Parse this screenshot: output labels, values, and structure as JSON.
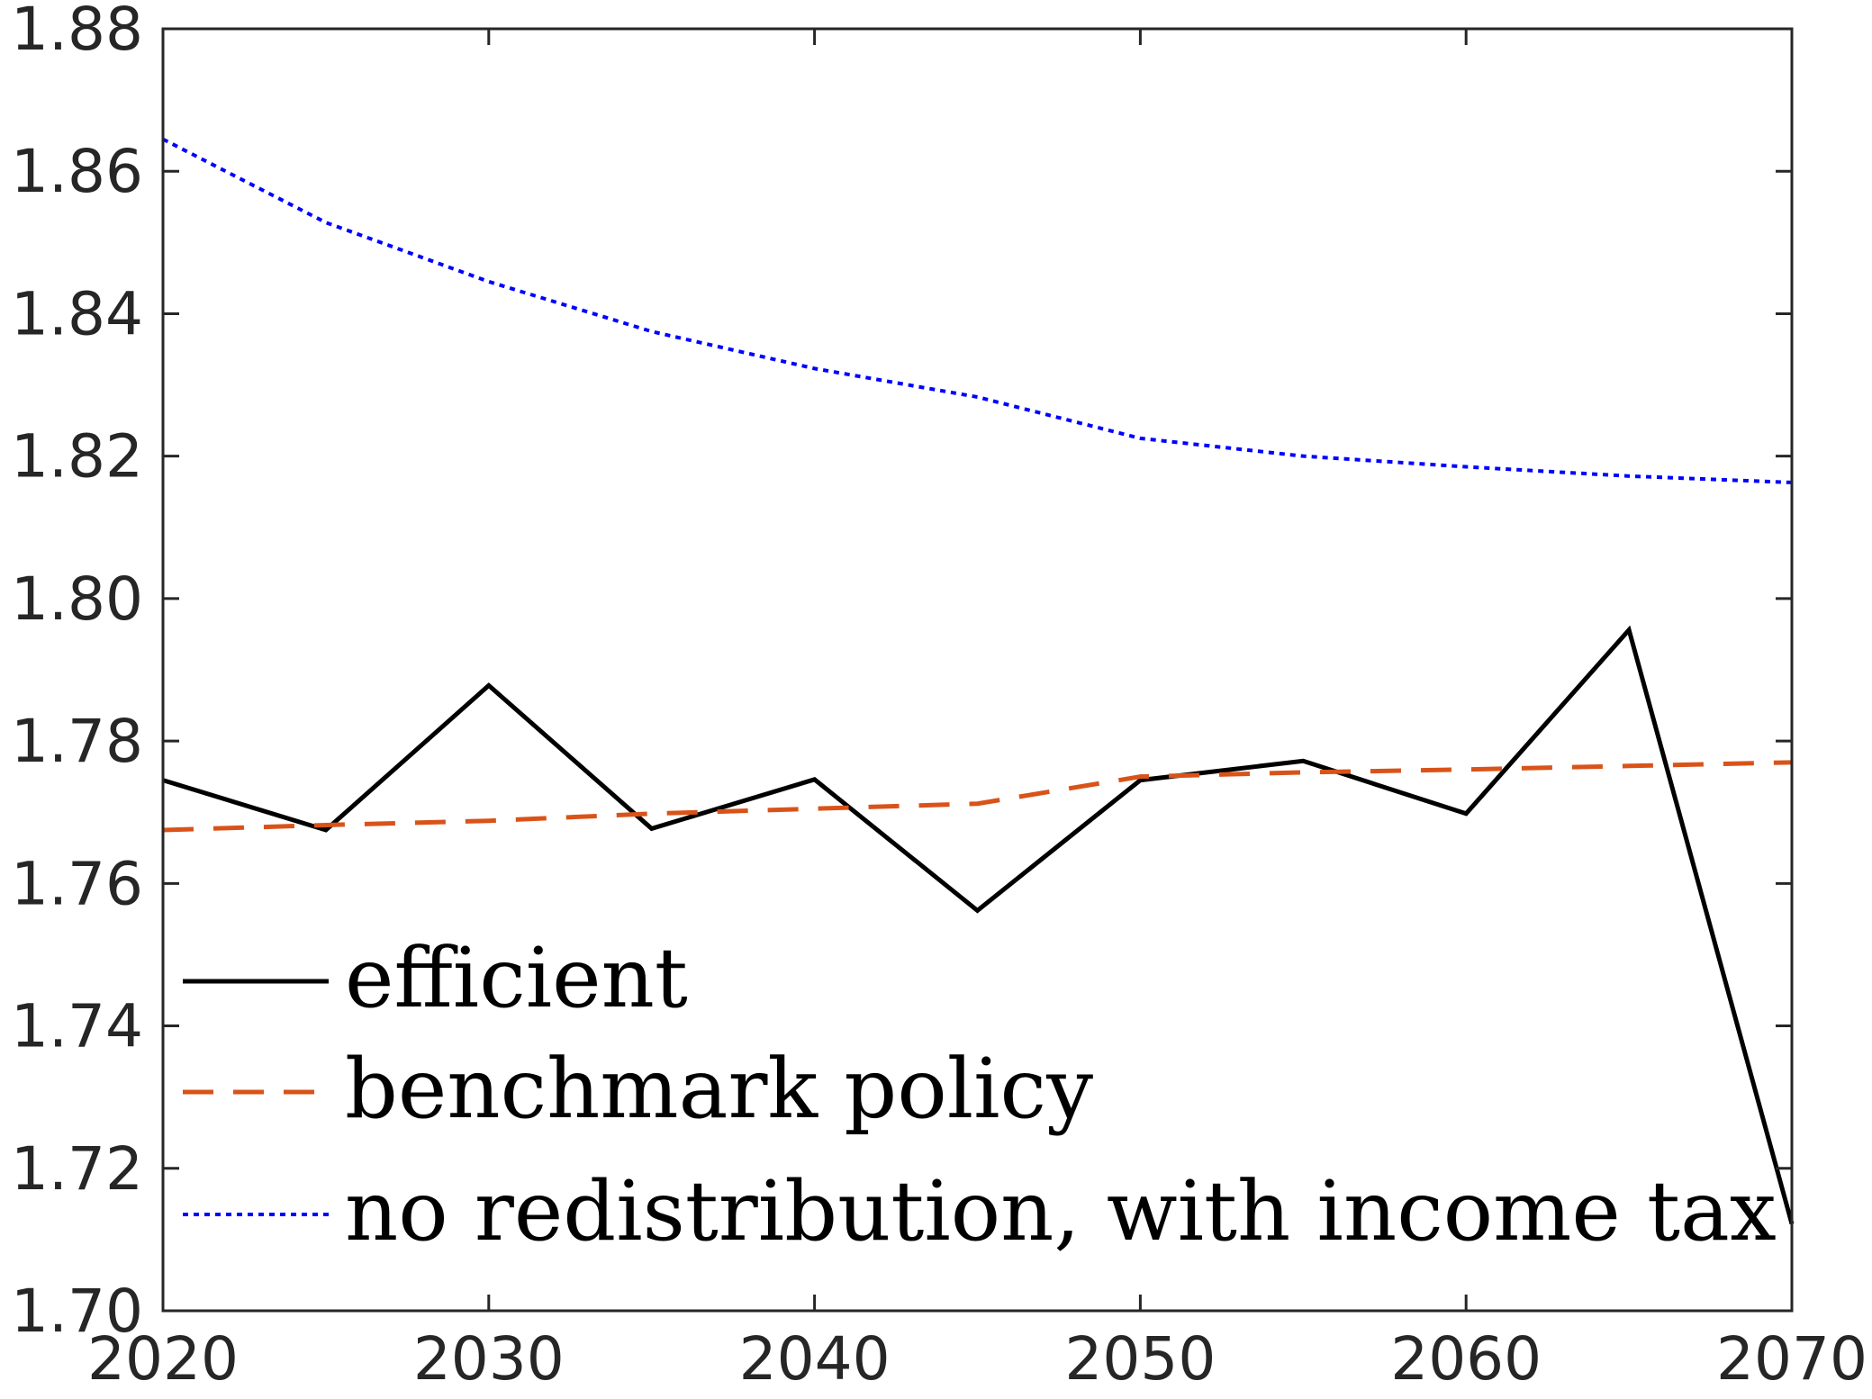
{
  "chart_data": {
    "type": "line",
    "title": "",
    "xlabel": "",
    "ylabel": "",
    "xlim": [
      2020,
      2070
    ],
    "ylim": [
      1.7,
      1.88
    ],
    "xticks": [
      2020,
      2030,
      2040,
      2050,
      2060,
      2070
    ],
    "yticks": [
      1.7,
      1.72,
      1.74,
      1.76,
      1.78,
      1.8,
      1.82,
      1.84,
      1.86,
      1.88
    ],
    "grid": false,
    "legend_position": "bottom-left",
    "x": [
      2020,
      2025,
      2030,
      2035,
      2040,
      2045,
      2050,
      2055,
      2060,
      2065,
      2070
    ],
    "series": [
      {
        "name": "efficient",
        "color": "#000000",
        "style": "solid",
        "values": [
          1.7745,
          1.7675,
          1.7878,
          1.7677,
          1.7746,
          1.7562,
          1.7745,
          1.7772,
          1.7698,
          1.7956,
          1.7122
        ]
      },
      {
        "name": "benchmark policy",
        "color": "#D95319",
        "style": "dashed",
        "values": [
          1.7675,
          1.7682,
          1.7688,
          1.7698,
          1.7705,
          1.7712,
          1.775,
          1.7756,
          1.776,
          1.7765,
          1.777
        ]
      },
      {
        "name": "no redistribution, with income tax",
        "color": "#0000FF",
        "style": "dotted",
        "values": [
          1.8645,
          1.8528,
          1.8445,
          1.8375,
          1.8323,
          1.8283,
          1.8225,
          1.82,
          1.8185,
          1.8172,
          1.8163
        ]
      }
    ]
  }
}
